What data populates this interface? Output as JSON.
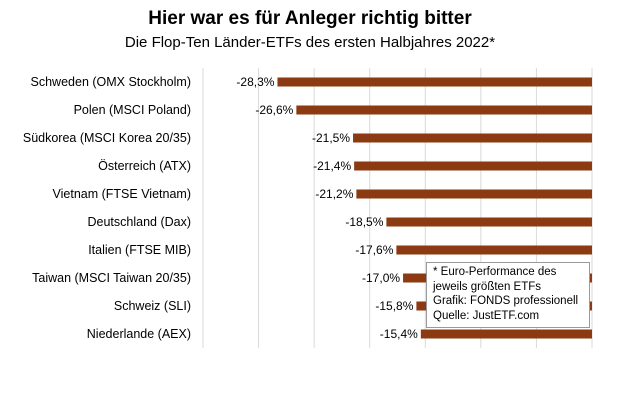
{
  "chart_data": {
    "type": "bar",
    "orientation": "horizontal",
    "title": "Hier war es für Anleger richtig bitter",
    "subtitle": "Die Flop-Ten Länder-ETFs des ersten Halbjahres 2022*",
    "categories": [
      "Schweden (OMX Stockholm)",
      "Polen (MSCI Poland)",
      "Südkorea (MSCI Korea 20/35)",
      "Österreich (ATX)",
      "Vietnam (FTSE Vietnam)",
      "Deutschland (Dax)",
      "Italien (FTSE MIB)",
      "Taiwan (MSCI Taiwan 20/35)",
      "Schweiz (SLI)",
      "Niederlande (AEX)"
    ],
    "values": [
      -28.3,
      -26.6,
      -21.5,
      -21.4,
      -21.2,
      -18.5,
      -17.6,
      -17.0,
      -15.8,
      -15.4
    ],
    "value_labels": [
      "-28,3%",
      "-26,6%",
      "-21,5%",
      "-21,4%",
      "-21,2%",
      "-18,5%",
      "-17,6%",
      "-17,0%",
      "-15,8%",
      "-15,4%"
    ],
    "xlim": [
      -35,
      0
    ],
    "bar_color": "#8b3a12",
    "grid": true,
    "note_lines": [
      "* Euro-Performance des",
      "jeweils größten ETFs",
      "Grafik: FONDS professionell",
      "Quelle: JustETF.com"
    ]
  }
}
